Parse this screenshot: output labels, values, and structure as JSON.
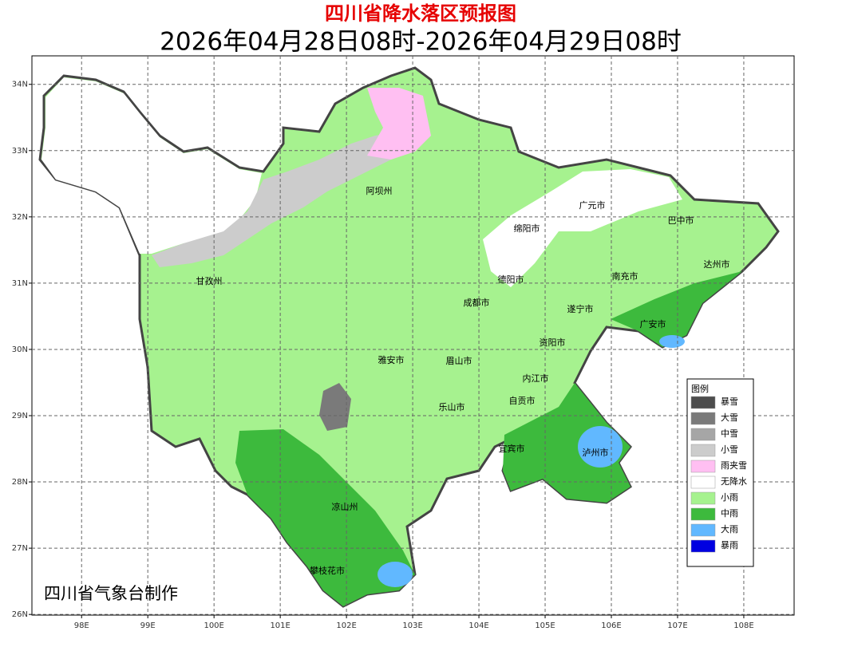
{
  "title": "四川省降水落区预报图",
  "subtitle": "2026年04月28日08时-2026年04月29日08时",
  "credit": "四川省气象台制作",
  "map": {
    "xlim": [
      97.25,
      108.76
    ],
    "ylim": [
      25.99,
      34.43
    ],
    "xticks": [
      {
        "value": 98,
        "label": "98E"
      },
      {
        "value": 99,
        "label": "99E"
      },
      {
        "value": 100,
        "label": "100E"
      },
      {
        "value": 101,
        "label": "101E"
      },
      {
        "value": 102,
        "label": "102E"
      },
      {
        "value": 103,
        "label": "103E"
      },
      {
        "value": 104,
        "label": "104E"
      },
      {
        "value": 105,
        "label": "105E"
      },
      {
        "value": 106,
        "label": "106E"
      },
      {
        "value": 107,
        "label": "107E"
      },
      {
        "value": 108,
        "label": "108E"
      }
    ],
    "yticks": [
      {
        "value": 26,
        "label": "26N"
      },
      {
        "value": 27,
        "label": "27N"
      },
      {
        "value": 28,
        "label": "28N"
      },
      {
        "value": 29,
        "label": "29N"
      },
      {
        "value": 30,
        "label": "30N"
      },
      {
        "value": 31,
        "label": "31N"
      },
      {
        "value": 32,
        "label": "32N"
      },
      {
        "value": 33,
        "label": "33N"
      },
      {
        "value": 34,
        "label": "34N"
      }
    ],
    "grid": true
  },
  "cities": [
    "阿坝州",
    "广元市",
    "巴中市",
    "绵阳市",
    "甘孜州",
    "德阳市",
    "南充市",
    "达州市",
    "成都市",
    "遂宁市",
    "广安市",
    "资阳市",
    "雅安市",
    "眉山市",
    "内江市",
    "乐山市",
    "自贡市",
    "宜宾市",
    "泸州市",
    "凉山州",
    "攀枝花市"
  ],
  "legend": {
    "title": "图例",
    "items": [
      {
        "label": "暴雪",
        "color": "#4d4d4d"
      },
      {
        "label": "大雪",
        "color": "#7a7a7a"
      },
      {
        "label": "中雪",
        "color": "#a6a6a6"
      },
      {
        "label": "小雪",
        "color": "#cccccc"
      },
      {
        "label": "雨夹雪",
        "color": "#ffbff2"
      },
      {
        "label": "无降水",
        "color": "#ffffff"
      },
      {
        "label": "小雨",
        "color": "#a6f28f"
      },
      {
        "label": "中雨",
        "color": "#3dba3d"
      },
      {
        "label": "大雨",
        "color": "#61b8ff"
      },
      {
        "label": "暴雨",
        "color": "#0000e1"
      }
    ]
  }
}
